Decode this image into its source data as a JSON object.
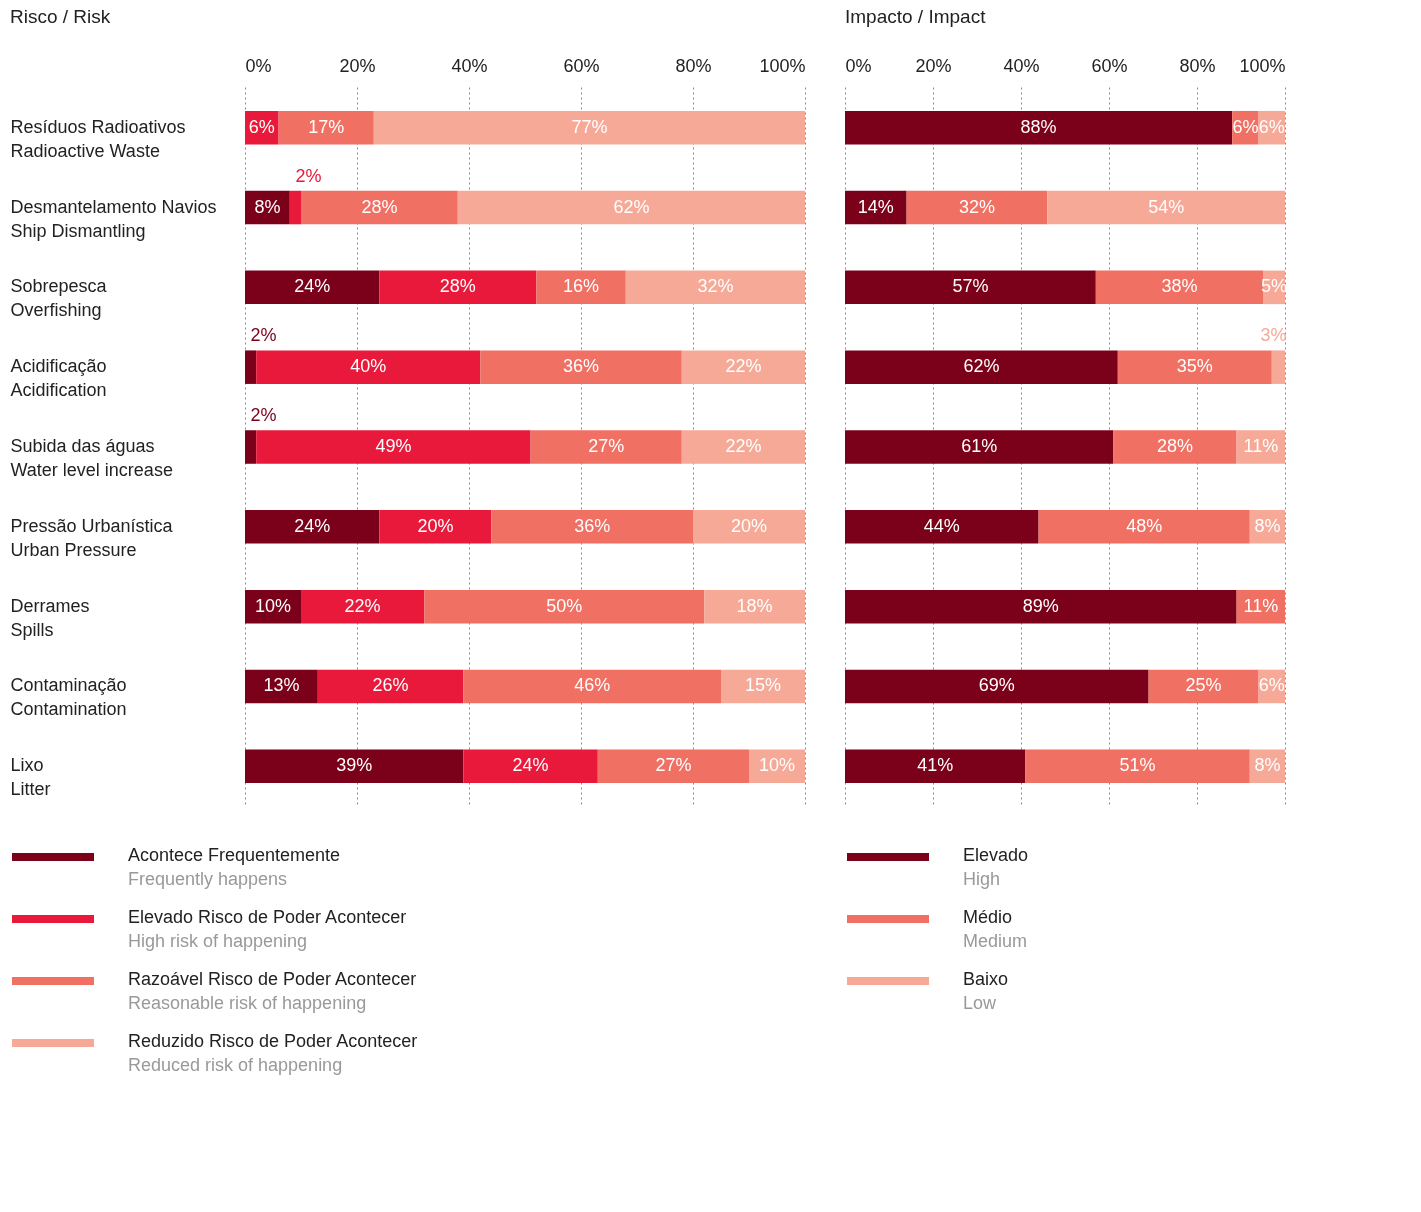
{
  "chart_data": [
    {
      "type": "bar",
      "title": "Risco / Risk",
      "orientation": "horizontal",
      "stacked": true,
      "grid": "x",
      "legend": "bottom",
      "data_labels": true,
      "categories": [
        "Resíduos Radioativos\nRadioactive Waste",
        "Desmantelamento Navios\nShip Dismantling",
        "Sobrepesca\nOverfishing",
        "Acidificação\nAcidification",
        "Subida das águas\nWater level increase",
        "Pressão Urbanística\nUrban Pressure",
        "Derrames\nSpills",
        "Contaminação\nContamination",
        "Lixo\nLitter"
      ],
      "xlim": [
        0,
        100
      ],
      "xticks": [
        {
          "value": 0,
          "label": "0%"
        },
        {
          "value": 20,
          "label": "20%"
        },
        {
          "value": 40,
          "label": "40%"
        },
        {
          "value": 60,
          "label": "60%"
        },
        {
          "value": 80,
          "label": "80%"
        },
        {
          "value": 100,
          "label": "100%"
        }
      ],
      "series": [
        {
          "name": "Acontece Frequentemente\nFrequently happens",
          "color": "#7b0019",
          "values": [
            null,
            8,
            24,
            2,
            2,
            24,
            10,
            13,
            39
          ],
          "value_labels": [
            null,
            "8%",
            "24%",
            "2%",
            "2%",
            "24%",
            "10%",
            "13%",
            "39%"
          ]
        },
        {
          "name": "Elevado Risco de Poder Acontecer\nHigh risk of happening",
          "color": "#e8193a",
          "values": [
            6,
            2,
            28,
            40,
            49,
            20,
            22,
            26,
            24
          ],
          "value_labels": [
            "6%",
            "2%",
            "28%",
            "40%",
            "49%",
            "20%",
            "22%",
            "26%",
            "24%"
          ]
        },
        {
          "name": "Razoável Risco de Poder Acontecer\nReasonable risk of happening",
          "color": "#f07063",
          "values": [
            17,
            28,
            16,
            36,
            27,
            36,
            50,
            46,
            27
          ],
          "value_labels": [
            "17%",
            "28%",
            "16%",
            "36%",
            "27%",
            "36%",
            "50%",
            "46%",
            "27%"
          ]
        },
        {
          "name": "Reduzido Risco de Poder Acontecer\nReduced risk of happening",
          "color": "#f6a997",
          "values": [
            77,
            62,
            32,
            22,
            22,
            20,
            18,
            15,
            10
          ],
          "value_labels": [
            "77%",
            "62%",
            "32%",
            "22%",
            "22%",
            "20%",
            "18%",
            "15%",
            "10%"
          ]
        }
      ]
    },
    {
      "type": "bar",
      "title": "Impacto / Impact",
      "orientation": "horizontal",
      "stacked": true,
      "grid": "x",
      "legend": "bottom",
      "data_labels": true,
      "tick_labels": "x",
      "categories": [
        null,
        null,
        null,
        null,
        null,
        null,
        null,
        null,
        null
      ],
      "xlim": [
        0,
        100
      ],
      "xticks": [
        {
          "value": 0,
          "label": "0%"
        },
        {
          "value": 20,
          "label": "20%"
        },
        {
          "value": 40,
          "label": "40%"
        },
        {
          "value": 60,
          "label": "60%"
        },
        {
          "value": 80,
          "label": "80%"
        },
        {
          "value": 100,
          "label": "100%"
        }
      ],
      "series": [
        {
          "name": "Elevado\nHigh",
          "color": "#7b0019",
          "values": [
            88,
            14,
            57,
            62,
            61,
            44,
            89,
            69,
            41
          ],
          "value_labels": [
            "88%",
            "14%",
            "57%",
            "62%",
            "61%",
            "44%",
            "89%",
            "69%",
            "41%"
          ]
        },
        {
          "name": "Médio\nMedium",
          "color": "#f07063",
          "values": [
            6,
            32,
            38,
            35,
            28,
            48,
            11,
            25,
            51
          ],
          "value_labels": [
            "6%",
            "32%",
            "38%",
            "35%",
            "28%",
            "48%",
            "11%",
            "25%",
            "51%"
          ]
        },
        {
          "name": "Baixo\nLow",
          "color": "#f6a997",
          "values": [
            6,
            54,
            5,
            3,
            11,
            8,
            null,
            6,
            8
          ],
          "value_labels": [
            "6%",
            "54%",
            "5%",
            "3%",
            "11%",
            "8%",
            null,
            "6%",
            "8%"
          ]
        }
      ]
    }
  ]
}
